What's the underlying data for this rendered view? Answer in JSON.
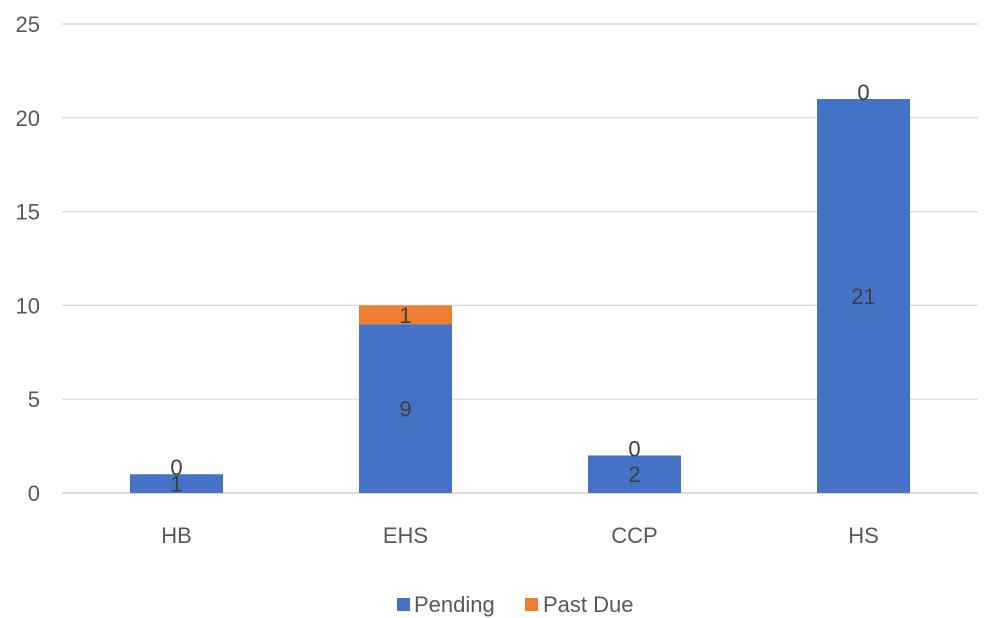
{
  "chart_data": {
    "type": "bar",
    "stacked": true,
    "categories": [
      "HB",
      "EHS",
      "CCP",
      "HS"
    ],
    "series": [
      {
        "name": "Pending",
        "values": [
          1,
          9,
          2,
          21
        ],
        "color": "#4472C4"
      },
      {
        "name": "Past Due",
        "values": [
          0,
          1,
          0,
          0
        ],
        "color": "#ED7D31"
      }
    ],
    "ylim": [
      0,
      25
    ],
    "yticks": [
      0,
      5,
      10,
      15,
      20,
      25
    ],
    "grid": true,
    "legend": "bottom",
    "title": "",
    "xlabel": "",
    "ylabel": ""
  }
}
